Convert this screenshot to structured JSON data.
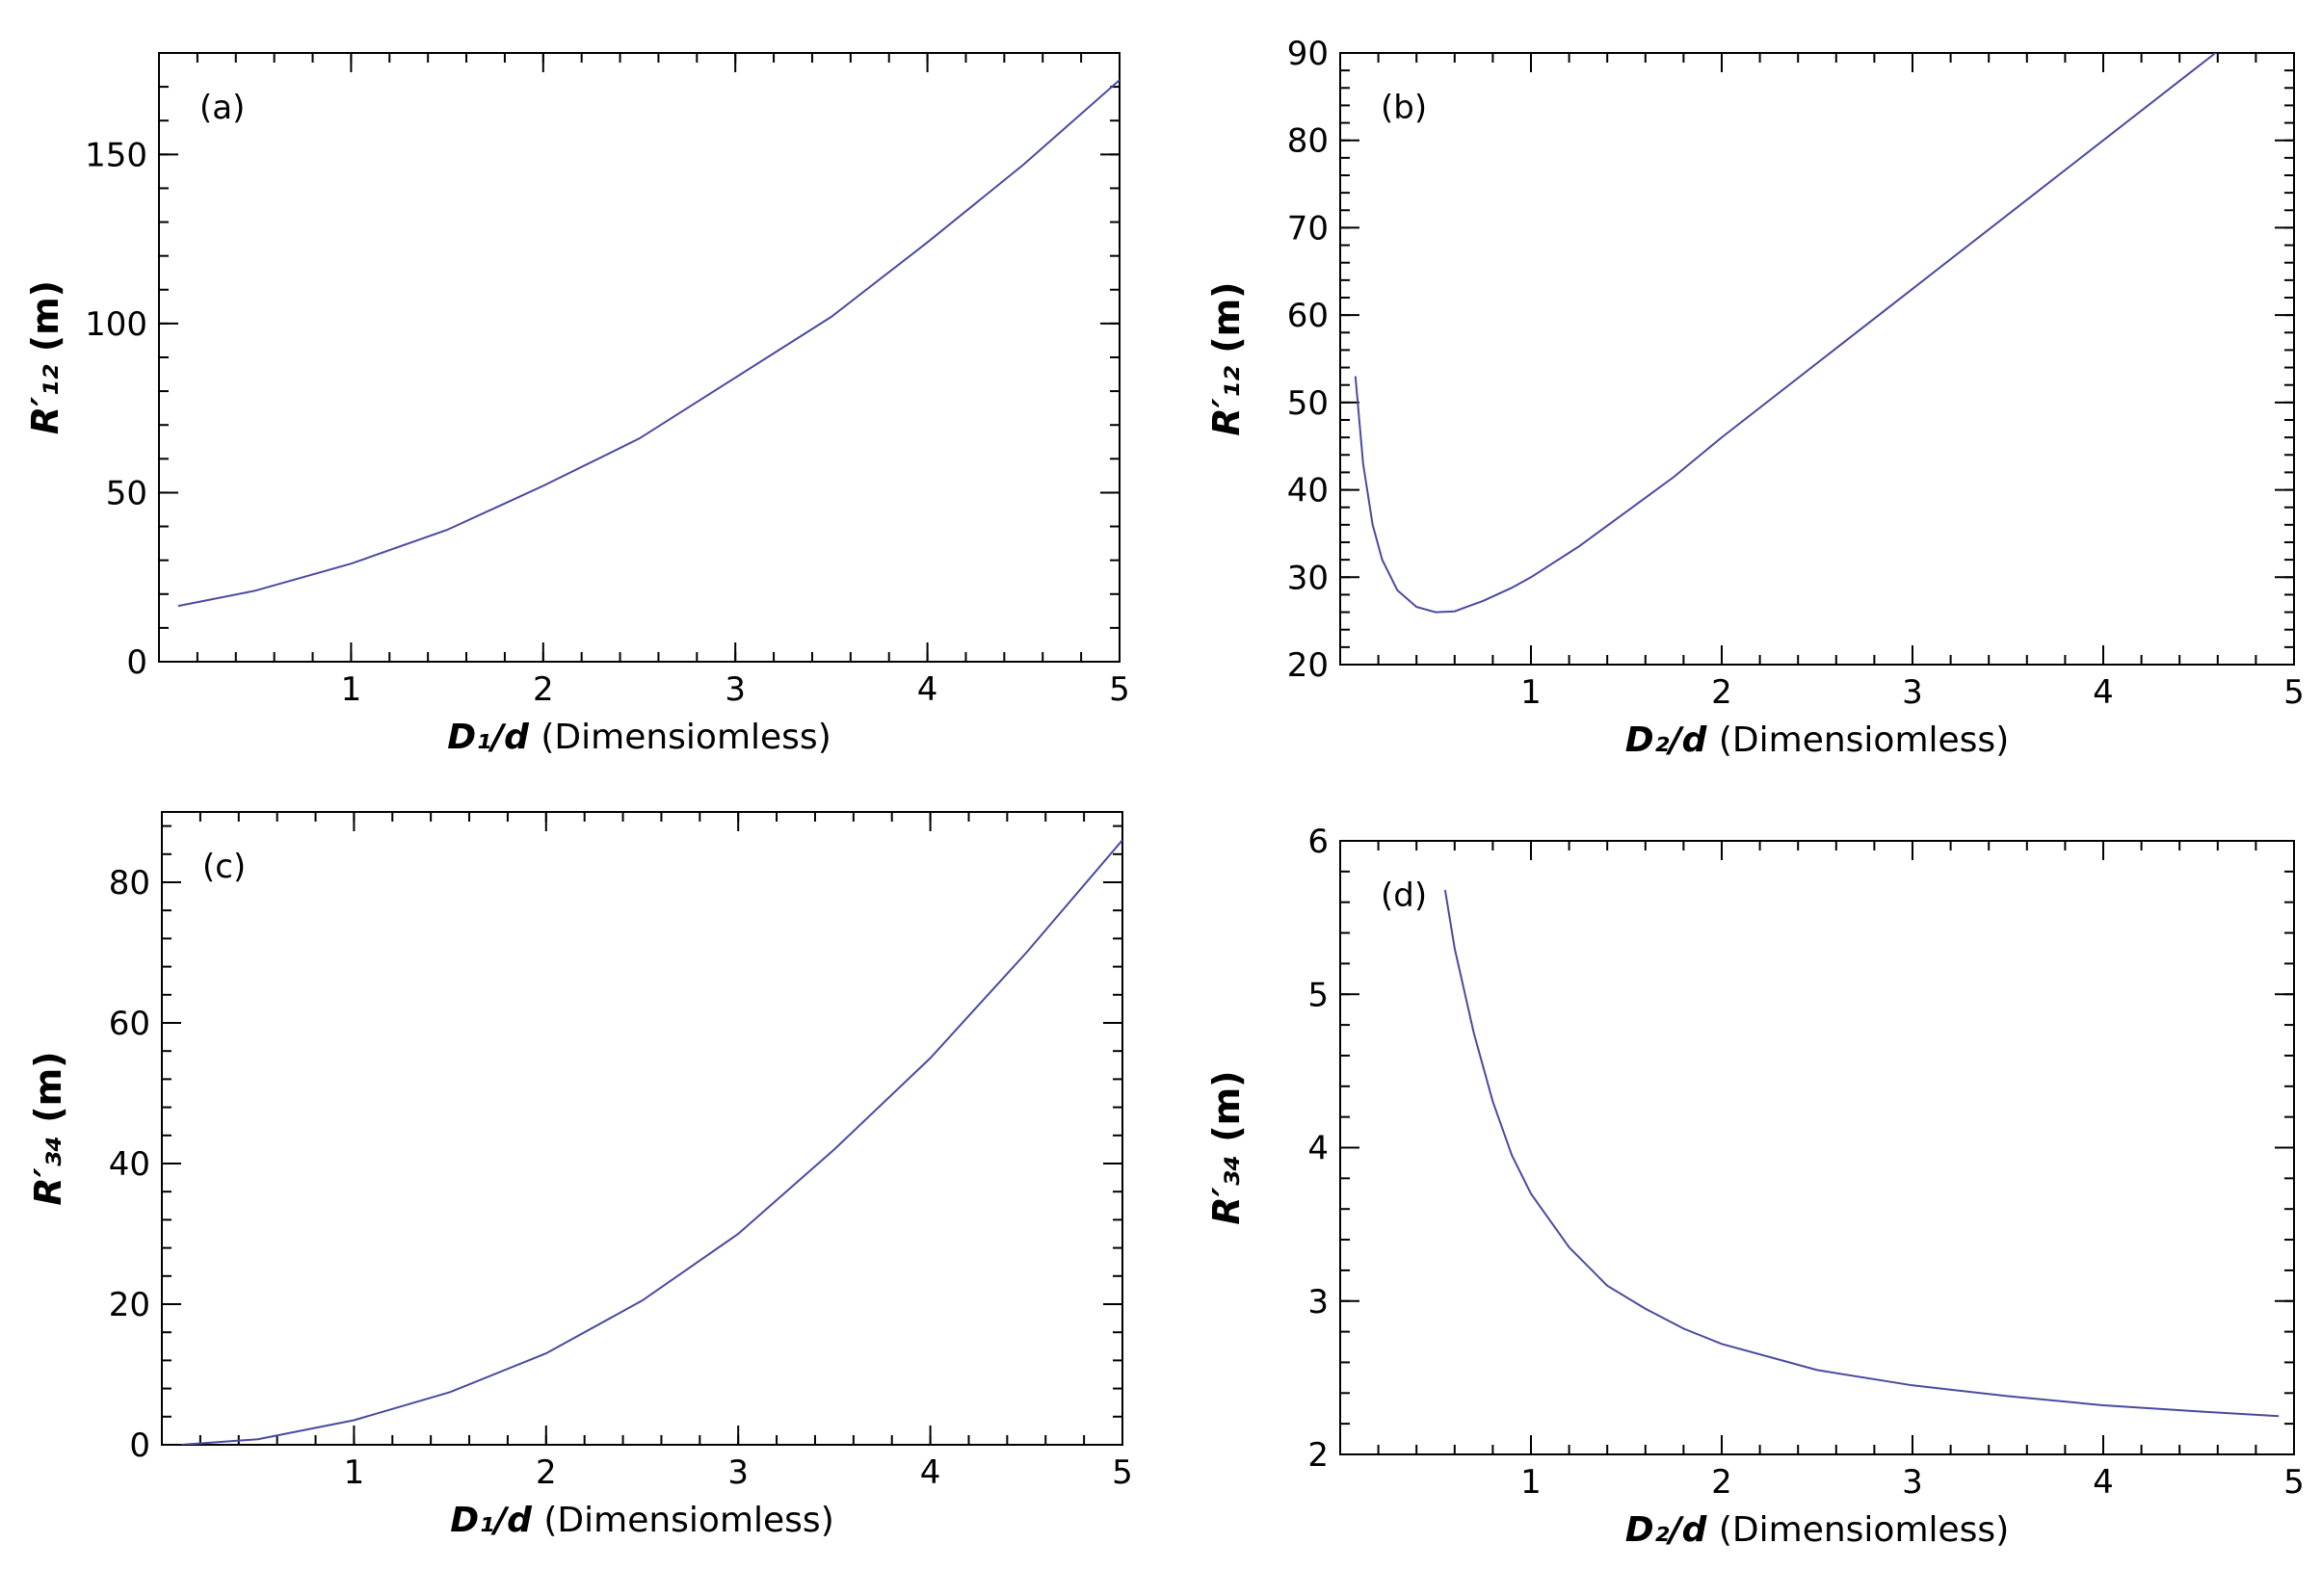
{
  "chart_data": [
    {
      "type": "line",
      "panel_label": "(a)",
      "xlabel_symbol": "D₁/d",
      "xlabel_text": "(Dimensiomless)",
      "ylabel_symbol": "R′₁₂",
      "ylabel_unit": "(m)",
      "xlim": [
        0,
        5
      ],
      "ylim": [
        0,
        180
      ],
      "xticks": [
        1,
        2,
        3,
        4,
        5
      ],
      "yticks": [
        0,
        50,
        100,
        150
      ],
      "grid": false,
      "series": [
        {
          "x": [
            0.1,
            0.5,
            1,
            1.5,
            2,
            2.5,
            3,
            3.5,
            4,
            4.5,
            5
          ],
          "y": [
            16.5,
            21,
            29,
            39,
            52,
            66,
            84,
            102,
            124,
            147,
            172
          ]
        }
      ]
    },
    {
      "type": "line",
      "panel_label": "(b)",
      "xlabel_symbol": "D₂/d",
      "xlabel_text": "(Dimensiomless)",
      "ylabel_symbol": "R′₁₂",
      "ylabel_unit": "(m)",
      "xlim": [
        0,
        5
      ],
      "ylim": [
        20,
        90
      ],
      "xticks": [
        1,
        2,
        3,
        4,
        5
      ],
      "yticks": [
        20,
        30,
        40,
        50,
        60,
        70,
        80,
        90
      ],
      "grid": false,
      "series": [
        {
          "x": [
            0.08,
            0.12,
            0.17,
            0.22,
            0.3,
            0.4,
            0.5,
            0.6,
            0.75,
            0.9,
            1.0,
            1.25,
            1.5,
            1.75,
            2.0,
            2.5,
            3.0,
            3.5,
            4.0,
            4.5,
            5.0
          ],
          "y": [
            53,
            43,
            36,
            32,
            28.5,
            26.6,
            26,
            26.1,
            27.3,
            28.8,
            30,
            33.5,
            37.5,
            41.5,
            46,
            54.5,
            63,
            71.5,
            80,
            88.5,
            97
          ]
        }
      ]
    },
    {
      "type": "line",
      "panel_label": "(c)",
      "xlabel_symbol": "D₁/d",
      "xlabel_text": "(Dimensiomless)",
      "ylabel_symbol": "R′₃₄",
      "ylabel_unit": "(m)",
      "xlim": [
        0,
        5
      ],
      "ylim": [
        0,
        90
      ],
      "xticks": [
        1,
        2,
        3,
        4,
        5
      ],
      "yticks": [
        0,
        20,
        40,
        60,
        80
      ],
      "grid": false,
      "series": [
        {
          "x": [
            0.1,
            0.5,
            1,
            1.5,
            2,
            2.5,
            3,
            3.5,
            4,
            4.5,
            5
          ],
          "y": [
            0,
            0.8,
            3.5,
            7.5,
            13,
            20.5,
            30,
            42,
            55,
            70,
            86
          ]
        }
      ]
    },
    {
      "type": "line",
      "panel_label": "(d)",
      "xlabel_symbol": "D₂/d",
      "xlabel_text": "(Dimensiomless)",
      "ylabel_symbol": "R′₃₄",
      "ylabel_unit": "(m)",
      "xlim": [
        0,
        5
      ],
      "ylim": [
        2,
        6
      ],
      "xticks": [
        1,
        2,
        3,
        4,
        5
      ],
      "yticks": [
        2,
        3,
        4,
        5,
        6
      ],
      "grid": false,
      "series": [
        {
          "x": [
            0.55,
            0.6,
            0.7,
            0.8,
            0.9,
            1.0,
            1.2,
            1.4,
            1.6,
            1.8,
            2.0,
            2.5,
            3.0,
            3.5,
            4.0,
            4.5,
            4.92
          ],
          "y": [
            5.68,
            5.3,
            4.75,
            4.3,
            3.95,
            3.7,
            3.35,
            3.1,
            2.95,
            2.82,
            2.72,
            2.55,
            2.45,
            2.38,
            2.32,
            2.28,
            2.25
          ]
        }
      ]
    }
  ]
}
